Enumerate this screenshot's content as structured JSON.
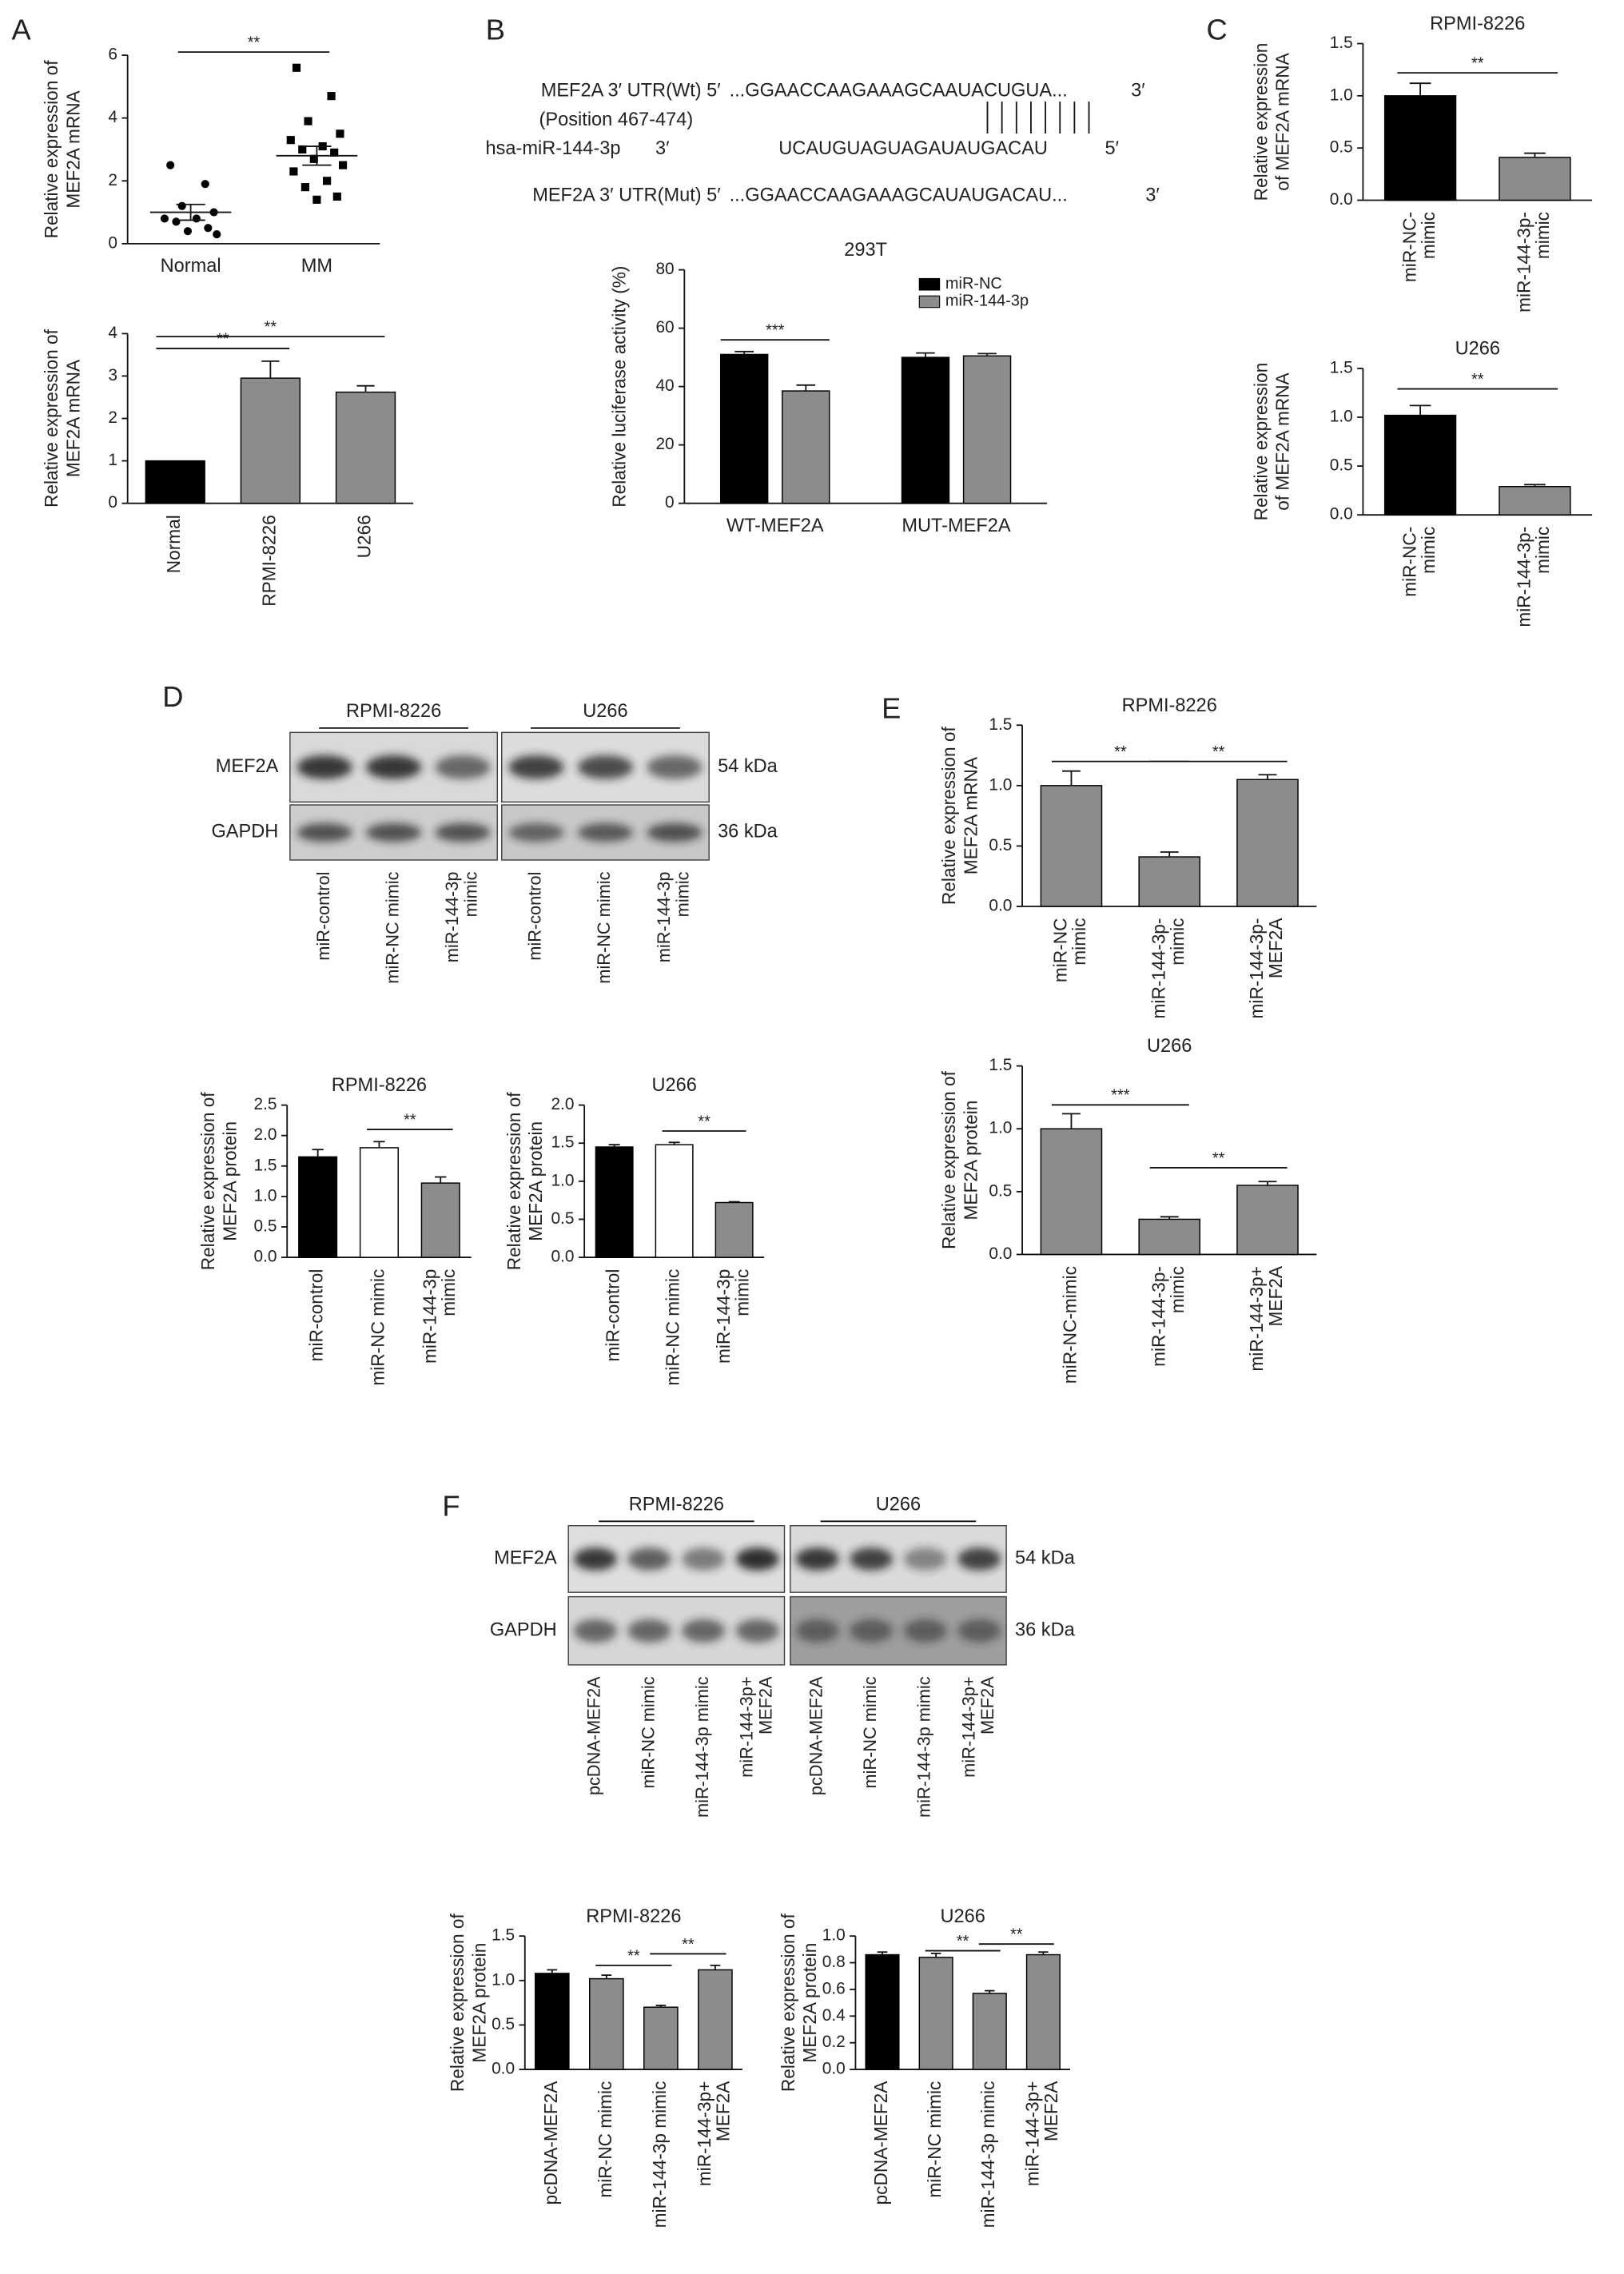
{
  "panels": [
    "A",
    "B",
    "C",
    "D",
    "E",
    "F"
  ],
  "alignment": {
    "wt_label": "MEF2A 3′ UTR(Wt) 5′",
    "wt_seq": "...GGAACCAAGAAAGCAAUACUGUA...",
    "wt_end": "3′",
    "position": "(Position 467-474)",
    "mir_label": "hsa-miR-144-3p",
    "mir_start": "3′",
    "mir_seq": "UCAUGUAGUAGAUAUGACAU",
    "mir_end": "5′",
    "mut_label": "MEF2A  3′ UTR(Mut) 5′",
    "mut_seq": "...GGAACCAAGAAAGCAUAUGACAU...",
    "mut_end": "3′"
  },
  "blots": [
    {
      "groups": [
        "RPMI-8226",
        "U266"
      ],
      "rows": [
        "MEF2A",
        "GAPDH"
      ],
      "sizes": [
        "54 kDa",
        "36 kDa"
      ],
      "lanes": [
        "miR-control",
        "miR-NC mimic",
        [
          "miR-144-3p",
          "mimic"
        ],
        "miR-control",
        "miR-NC mimic",
        [
          "miR-144-3p",
          "mimic"
        ]
      ]
    },
    {
      "groups": [
        "RPMI-8226",
        "U266"
      ],
      "rows": [
        "MEF2A",
        "GAPDH"
      ],
      "sizes": [
        "54 kDa",
        "36 kDa"
      ],
      "lanes": [
        "pcDNA-MEF2A",
        "miR-NC mimic",
        "miR-144-3p mimic",
        [
          "miR-144-3p+",
          "MEF2A"
        ],
        "pcDNA-MEF2A",
        "miR-NC mimic",
        "miR-144-3p mimic",
        [
          "miR-144-3p+",
          "MEF2A"
        ]
      ]
    }
  ],
  "chart_data": [
    {
      "type": "strip",
      "ylabel": [
        "Relative expression of",
        "MEF2A mRNA"
      ],
      "categories": [
        "Normal",
        "MM"
      ],
      "points": [
        [
          2.5,
          1.9,
          1.2,
          1.0,
          0.8,
          0.8,
          0.7,
          0.5,
          0.4,
          0.3
        ],
        [
          5.6,
          4.7,
          3.9,
          3.5,
          3.3,
          3.1,
          3.0,
          2.9,
          2.7,
          2.5,
          2.3,
          2.0,
          1.8,
          1.5,
          1.4
        ]
      ],
      "means": [
        1.0,
        2.8
      ],
      "errors": [
        0.25,
        0.3
      ],
      "ylim": [
        0,
        6
      ],
      "yticks": [
        0,
        2,
        4,
        6
      ],
      "significance": [
        {
          "from": 0,
          "to": 1,
          "y": 6.1,
          "label": "**"
        }
      ]
    },
    {
      "type": "bar",
      "ylabel": [
        "Relative expression of",
        "MEF2A mRNA"
      ],
      "categories": [
        "Normal",
        "RPMI-8226",
        "U266"
      ],
      "values": [
        1,
        2.95,
        2.62
      ],
      "errors": [
        0,
        0.4,
        0.15
      ],
      "colors": [
        "#000000",
        "#8c8c8c",
        "#8c8c8c"
      ],
      "ylim": [
        0,
        4
      ],
      "yticks": [
        0,
        1,
        2,
        3,
        4
      ],
      "significance": [
        {
          "from": 0,
          "to": 1,
          "y": 3.65,
          "label": "**"
        },
        {
          "from": 0,
          "to": 2,
          "y": 3.93,
          "label": "**"
        }
      ]
    },
    {
      "type": "grouped_bar",
      "title": "293T",
      "ylabel": "Relative luciferase activity (%)",
      "categories": [
        "WT-MEF2A",
        "MUT-MEF2A"
      ],
      "series": [
        {
          "name": "miR-NC",
          "color": "#000000",
          "values": [
            51,
            50
          ],
          "errors": [
            1,
            1.5
          ]
        },
        {
          "name": "miR-144-3p",
          "color": "#8c8c8c",
          "values": [
            38.5,
            50.5
          ],
          "errors": [
            2,
            0.8
          ]
        }
      ],
      "ylim": [
        0,
        80
      ],
      "yticks": [
        0,
        20,
        40,
        60,
        80
      ],
      "legend": "top-right",
      "significance": [
        {
          "category": 0,
          "y": 56,
          "label": "***"
        }
      ]
    },
    {
      "type": "bar",
      "title": "RPMI-8226",
      "ylabel": [
        "Relative expression",
        "of MEF2A mRNA"
      ],
      "categories": [
        [
          "miR-NC-",
          "mimic"
        ],
        [
          "miR-144-3p-",
          "mimic"
        ]
      ],
      "values": [
        1.0,
        0.41
      ],
      "errors": [
        0.12,
        0.04
      ],
      "colors": [
        "#000000",
        "#8c8c8c"
      ],
      "ylim": [
        0,
        1.5
      ],
      "yticks": [
        {
          "value": 0,
          "label": "0.0"
        },
        0.5,
        {
          "value": 1,
          "label": "1.0"
        },
        1.5
      ],
      "significance": [
        {
          "from": 0,
          "to": 1,
          "y": 1.22,
          "label": "**"
        }
      ]
    },
    {
      "type": "bar",
      "title": "U266",
      "ylabel": [
        "Relative expression",
        "of MEF2A mRNA"
      ],
      "categories": [
        [
          "miR-NC-",
          "mimic"
        ],
        [
          "miR-144-3p-",
          "mimic"
        ]
      ],
      "values": [
        1.02,
        0.29
      ],
      "errors": [
        0.1,
        0.02
      ],
      "colors": [
        "#000000",
        "#8c8c8c"
      ],
      "ylim": [
        0,
        1.5
      ],
      "yticks": [
        {
          "value": 0,
          "label": "0.0"
        },
        0.5,
        {
          "value": 1,
          "label": "1.0"
        },
        1.5
      ],
      "significance": [
        {
          "from": 0,
          "to": 1,
          "y": 1.29,
          "label": "**"
        }
      ]
    },
    {
      "type": "bar",
      "title": "RPMI-8226",
      "ylabel": [
        "Relative expression of",
        "MEF2A protein"
      ],
      "categories": [
        "miR-control",
        "miR-NC mimic",
        [
          "miR-144-3p",
          "mimic"
        ]
      ],
      "values": [
        1.65,
        1.8,
        1.22
      ],
      "errors": [
        0.12,
        0.1,
        0.1
      ],
      "colors": [
        "#000000",
        "#ffffff",
        "#8c8c8c"
      ],
      "ylim": [
        0,
        2.5
      ],
      "yticks": [
        {
          "value": 0,
          "label": "0.0"
        },
        0.5,
        {
          "value": 1,
          "label": "1.0"
        },
        1.5,
        {
          "value": 2,
          "label": "2.0"
        },
        2.5
      ],
      "significance": [
        {
          "from": 1,
          "to": 2,
          "y": 2.1,
          "label": "**"
        }
      ]
    },
    {
      "type": "bar",
      "title": "U266",
      "ylabel": [
        "Relative expression of",
        "MEF2A protein"
      ],
      "categories": [
        "miR-control",
        "miR-NC mimic",
        [
          "miR-144-3p",
          "mimic"
        ]
      ],
      "values": [
        1.45,
        1.48,
        0.72
      ],
      "errors": [
        0.03,
        0.03,
        0.01
      ],
      "colors": [
        "#000000",
        "#ffffff",
        "#8c8c8c"
      ],
      "ylim": [
        0,
        2
      ],
      "yticks": [
        {
          "value": 0,
          "label": "0.0"
        },
        0.5,
        {
          "value": 1,
          "label": "1.0"
        },
        1.5,
        {
          "value": 2,
          "label": "2.0"
        }
      ],
      "significance": [
        {
          "from": 1,
          "to": 2,
          "y": 1.66,
          "label": "**"
        }
      ]
    },
    {
      "type": "bar",
      "title": "RPMI-8226",
      "ylabel": [
        "Relative expression of",
        "MEF2A mRNA"
      ],
      "categories": [
        [
          "miR-NC",
          "mimic"
        ],
        [
          "miR-144-3p-",
          "mimic"
        ],
        [
          "miR-144-3p-",
          "MEF2A"
        ]
      ],
      "values": [
        1.0,
        0.41,
        1.05
      ],
      "errors": [
        0.12,
        0.04,
        0.04
      ],
      "colors": [
        "#8c8c8c",
        "#8c8c8c",
        "#8c8c8c"
      ],
      "ylim": [
        0,
        1.5
      ],
      "yticks": [
        {
          "value": 0,
          "label": "0.0"
        },
        0.5,
        {
          "value": 1,
          "label": "1.0"
        },
        1.5
      ],
      "significance": [
        {
          "from": 0,
          "to": 1,
          "y": 1.2,
          "label": "**"
        },
        {
          "from": 1,
          "to": 2,
          "y": 1.2,
          "label": "**"
        }
      ]
    },
    {
      "type": "bar",
      "title": "U266",
      "ylabel": [
        "Relative expression of",
        "MEF2A protein"
      ],
      "categories": [
        "miR-NC-mimic",
        [
          "miR-144-3p-",
          "mimic"
        ],
        [
          "miR-144-3p+",
          "MEF2A"
        ]
      ],
      "values": [
        1.0,
        0.28,
        0.55
      ],
      "errors": [
        0.12,
        0.02,
        0.03
      ],
      "colors": [
        "#8c8c8c",
        "#8c8c8c",
        "#8c8c8c"
      ],
      "ylim": [
        0,
        1.5
      ],
      "yticks": [
        {
          "value": 0,
          "label": "0.0"
        },
        0.5,
        {
          "value": 1,
          "label": "1.0"
        },
        1.5
      ],
      "significance": [
        {
          "from": 0,
          "to": 1,
          "y": 1.19,
          "label": "***"
        },
        {
          "from": 1,
          "to": 2,
          "y": 0.69,
          "label": "**"
        }
      ]
    },
    {
      "type": "bar",
      "title": "RPMI-8226",
      "ylabel": [
        "Relative expression of",
        "MEF2A protein"
      ],
      "categories": [
        "pcDNA-MEF2A",
        "miR-NC mimic",
        "miR-144-3p mimic",
        [
          "miR-144-3p+",
          "MEF2A"
        ]
      ],
      "values": [
        1.08,
        1.02,
        0.7,
        1.12
      ],
      "errors": [
        0.04,
        0.04,
        0.02,
        0.05
      ],
      "colors": [
        "#000000",
        "#8c8c8c",
        "#8c8c8c",
        "#8c8c8c"
      ],
      "ylim": [
        0,
        1.5
      ],
      "yticks": [
        {
          "value": 0,
          "label": "0.0"
        },
        0.5,
        {
          "value": 1,
          "label": "1.0"
        },
        1.5
      ],
      "significance": [
        {
          "from": 1,
          "to": 2,
          "y": 1.17,
          "label": "**"
        },
        {
          "from": 2,
          "to": 3,
          "y": 1.3,
          "label": "**"
        }
      ]
    },
    {
      "type": "bar",
      "title": "U266",
      "ylabel": [
        "Relative expression of",
        "MEF2A protein"
      ],
      "categories": [
        "pcDNA-MEF2A",
        "miR-NC mimic",
        "miR-144-3p mimic",
        [
          "miR-144-3p+",
          "MEF2A"
        ]
      ],
      "values": [
        0.86,
        0.84,
        0.57,
        0.86
      ],
      "errors": [
        0.02,
        0.03,
        0.02,
        0.02
      ],
      "colors": [
        "#000000",
        "#8c8c8c",
        "#8c8c8c",
        "#8c8c8c"
      ],
      "ylim": [
        0,
        1
      ],
      "yticks": [
        {
          "value": 0,
          "label": "0.0"
        },
        0.2,
        0.4,
        0.6,
        0.8,
        {
          "value": 1,
          "label": "1.0"
        }
      ],
      "significance": [
        {
          "from": 1,
          "to": 2,
          "y": 0.89,
          "label": "**"
        },
        {
          "from": 2,
          "to": 3,
          "y": 0.94,
          "label": "**"
        }
      ]
    }
  ]
}
